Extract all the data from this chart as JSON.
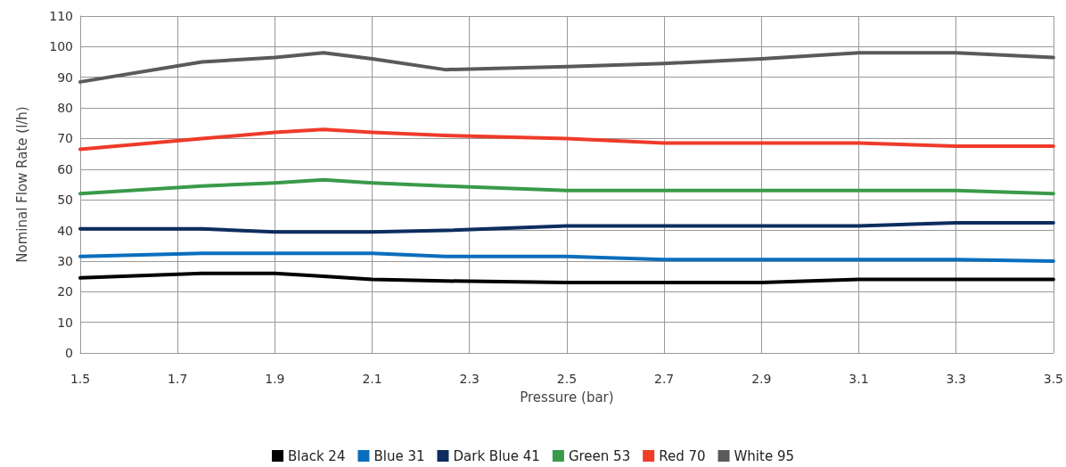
{
  "chart_data": {
    "type": "line",
    "xlabel": "Pressure (bar)",
    "ylabel": "Nominal Flow Rate (l/h)",
    "x": [
      1.5,
      1.75,
      1.9,
      2.0,
      2.1,
      2.25,
      2.5,
      2.7,
      2.9,
      3.1,
      3.3,
      3.5
    ],
    "series": [
      {
        "name": "Black 24",
        "color": "#000000",
        "values": [
          24.5,
          26,
          26,
          25,
          24,
          23.5,
          23,
          23,
          23,
          24,
          24,
          24
        ]
      },
      {
        "name": "Blue 31",
        "color": "#0a6ebd",
        "values": [
          31.5,
          32.5,
          32.5,
          32.5,
          32.5,
          31.5,
          31.5,
          30.5,
          30.5,
          30.5,
          30.5,
          30
        ]
      },
      {
        "name": "Dark Blue 41",
        "color": "#0d2d5e",
        "values": [
          40.5,
          40.5,
          39.5,
          39.5,
          39.5,
          40,
          41.5,
          41.5,
          41.5,
          41.5,
          42.5,
          42.5
        ]
      },
      {
        "name": "Green 53",
        "color": "#3a9a4a",
        "values": [
          52,
          54.5,
          55.5,
          56.5,
          55.5,
          54.5,
          53,
          53,
          53,
          53,
          53,
          52
        ]
      },
      {
        "name": "Red 70",
        "color": "#ee3b2a",
        "values": [
          66.5,
          70,
          72,
          73,
          72,
          71,
          70,
          68.5,
          68.5,
          68.5,
          67.5,
          67.5
        ]
      },
      {
        "name": "White 95",
        "color": "#5a5a5a",
        "values": [
          88.5,
          95,
          96.5,
          98,
          96,
          92.5,
          93.5,
          94.5,
          96,
          98,
          98,
          96.5
        ]
      }
    ],
    "xlim": [
      1.5,
      3.5
    ],
    "xticks": [
      1.5,
      1.7,
      1.9,
      2.1,
      2.3,
      2.5,
      2.7,
      2.9,
      3.1,
      3.3,
      3.5
    ],
    "ylim": [
      0,
      110
    ],
    "yticks": [
      0,
      10,
      20,
      30,
      40,
      50,
      60,
      70,
      80,
      90,
      100,
      110
    ],
    "grid": true,
    "legend": "bottom",
    "marker": "none",
    "line_style": "solid"
  }
}
